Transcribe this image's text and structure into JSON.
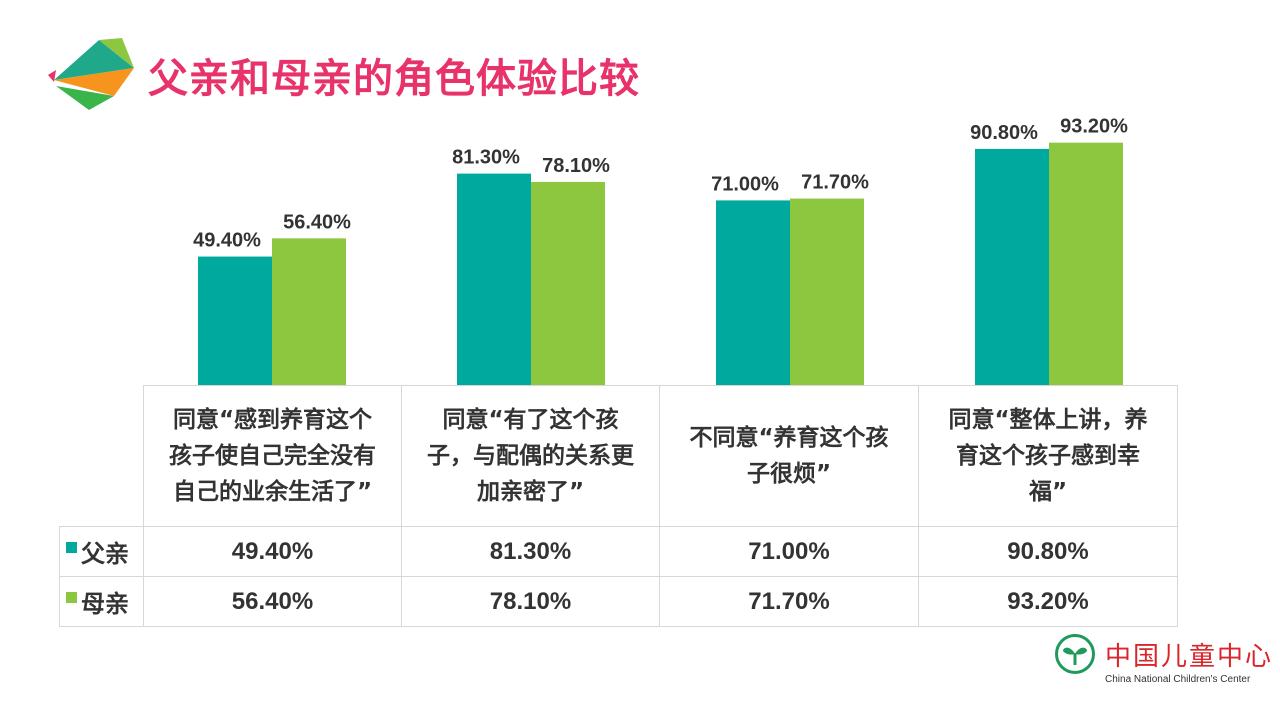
{
  "title": "父亲和母亲的角色体验比较",
  "colors": {
    "father": "#00a99d",
    "mother": "#8dc63f",
    "title": "#e8326a"
  },
  "table": {
    "rows": [
      {
        "label": "父亲",
        "values": [
          "49.40%",
          "81.30%",
          "71.00%",
          "90.80%"
        ]
      },
      {
        "label": "母亲",
        "values": [
          "56.40%",
          "78.10%",
          "71.70%",
          "93.20%"
        ]
      }
    ]
  },
  "chart_data": {
    "type": "bar",
    "categories": [
      "同意“感到养育这个孩子使自己完全没有自己的业余生活了”",
      "同意“有了这个孩子，与配偶的关系更加亲密了”",
      "不同意“养育这个孩子很烦”",
      "同意“整体上讲，养育这个孩子感到幸福”"
    ],
    "category_lines": [
      [
        "同意“感到养育这个",
        "孩子使自己完全没有",
        "自己的业余生活了”"
      ],
      [
        "同意“有了这个孩",
        "子，与配偶的关系更",
        "加亲密了”"
      ],
      [
        "不同意“养育这个孩",
        "子很烦”"
      ],
      [
        "同意“整体上讲，养",
        "育这个孩子感到幸",
        "福”"
      ]
    ],
    "series": [
      {
        "name": "父亲",
        "values": [
          49.4,
          81.3,
          71.0,
          90.8
        ],
        "labels": [
          "49.40%",
          "81.30%",
          "71.00%",
          "90.80%"
        ]
      },
      {
        "name": "母亲",
        "values": [
          56.4,
          78.1,
          71.7,
          93.2
        ],
        "labels": [
          "56.40%",
          "78.10%",
          "71.70%",
          "93.20%"
        ]
      }
    ],
    "ylim": [
      0,
      100
    ],
    "grid": false,
    "legend": "in-table"
  },
  "logo": {
    "cn": "中国儿童中心",
    "en": "China National Children's Center"
  }
}
